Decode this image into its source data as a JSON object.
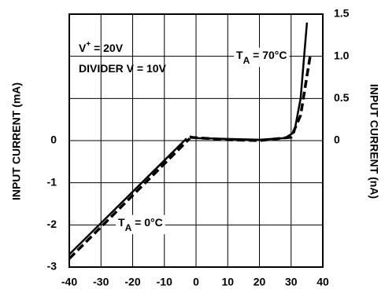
{
  "chart_data": {
    "type": "line",
    "xticks": [
      -40,
      -30,
      -20,
      -10,
      0,
      10,
      20,
      30,
      40
    ],
    "xlim": [
      -40,
      40
    ],
    "ylabel": "INPUT CURRENT (mA)",
    "ylim": [
      -3,
      3
    ],
    "yticks": [
      -3,
      -2,
      -1,
      0
    ],
    "y2label": "INPUT CURRENT (nA)",
    "y2lim": [
      -1.5,
      1.5
    ],
    "y2ticks": [
      0,
      0.5,
      {
        "value": 1,
        "label": "1.0"
      },
      1.5
    ],
    "grid": true,
    "series": [
      {
        "color": "#000000",
        "dash": false,
        "x": [
          -40,
          -3
        ],
        "values": [
          -2.7,
          0.05
        ]
      },
      {
        "color": "#000000",
        "dash": true,
        "x": [
          -40,
          -2
        ],
        "values": [
          -2.8,
          0.05
        ]
      },
      {
        "color": "#000000",
        "dash": false,
        "axis": "y2",
        "x": [
          -2,
          0,
          10,
          20,
          28,
          31,
          33,
          35
        ],
        "values": [
          0.05,
          0.03,
          0.02,
          0.01,
          0.03,
          0.1,
          0.5,
          1.4
        ]
      },
      {
        "color": "#000000",
        "dash": true,
        "axis": "y2",
        "x": [
          -2,
          10,
          20,
          30,
          33,
          36
        ],
        "values": [
          0.04,
          0.01,
          0.0,
          0.04,
          0.3,
          1.0
        ]
      }
    ],
    "annotations": [
      {
        "parts": [
          {
            "text": "V"
          },
          {
            "text": "+",
            "sup": true
          },
          {
            "text": " = 20V"
          }
        ]
      },
      {
        "parts": [
          {
            "text": "DIVIDER V = 10V"
          }
        ]
      },
      {
        "parts": [
          {
            "text": "T"
          },
          {
            "text": "A",
            "sub": true
          },
          {
            "text": " = 70°C"
          }
        ]
      },
      {
        "parts": [
          {
            "text": "T"
          },
          {
            "text": "A",
            "sub": true
          },
          {
            "text": " = 0°C"
          }
        ]
      }
    ]
  }
}
